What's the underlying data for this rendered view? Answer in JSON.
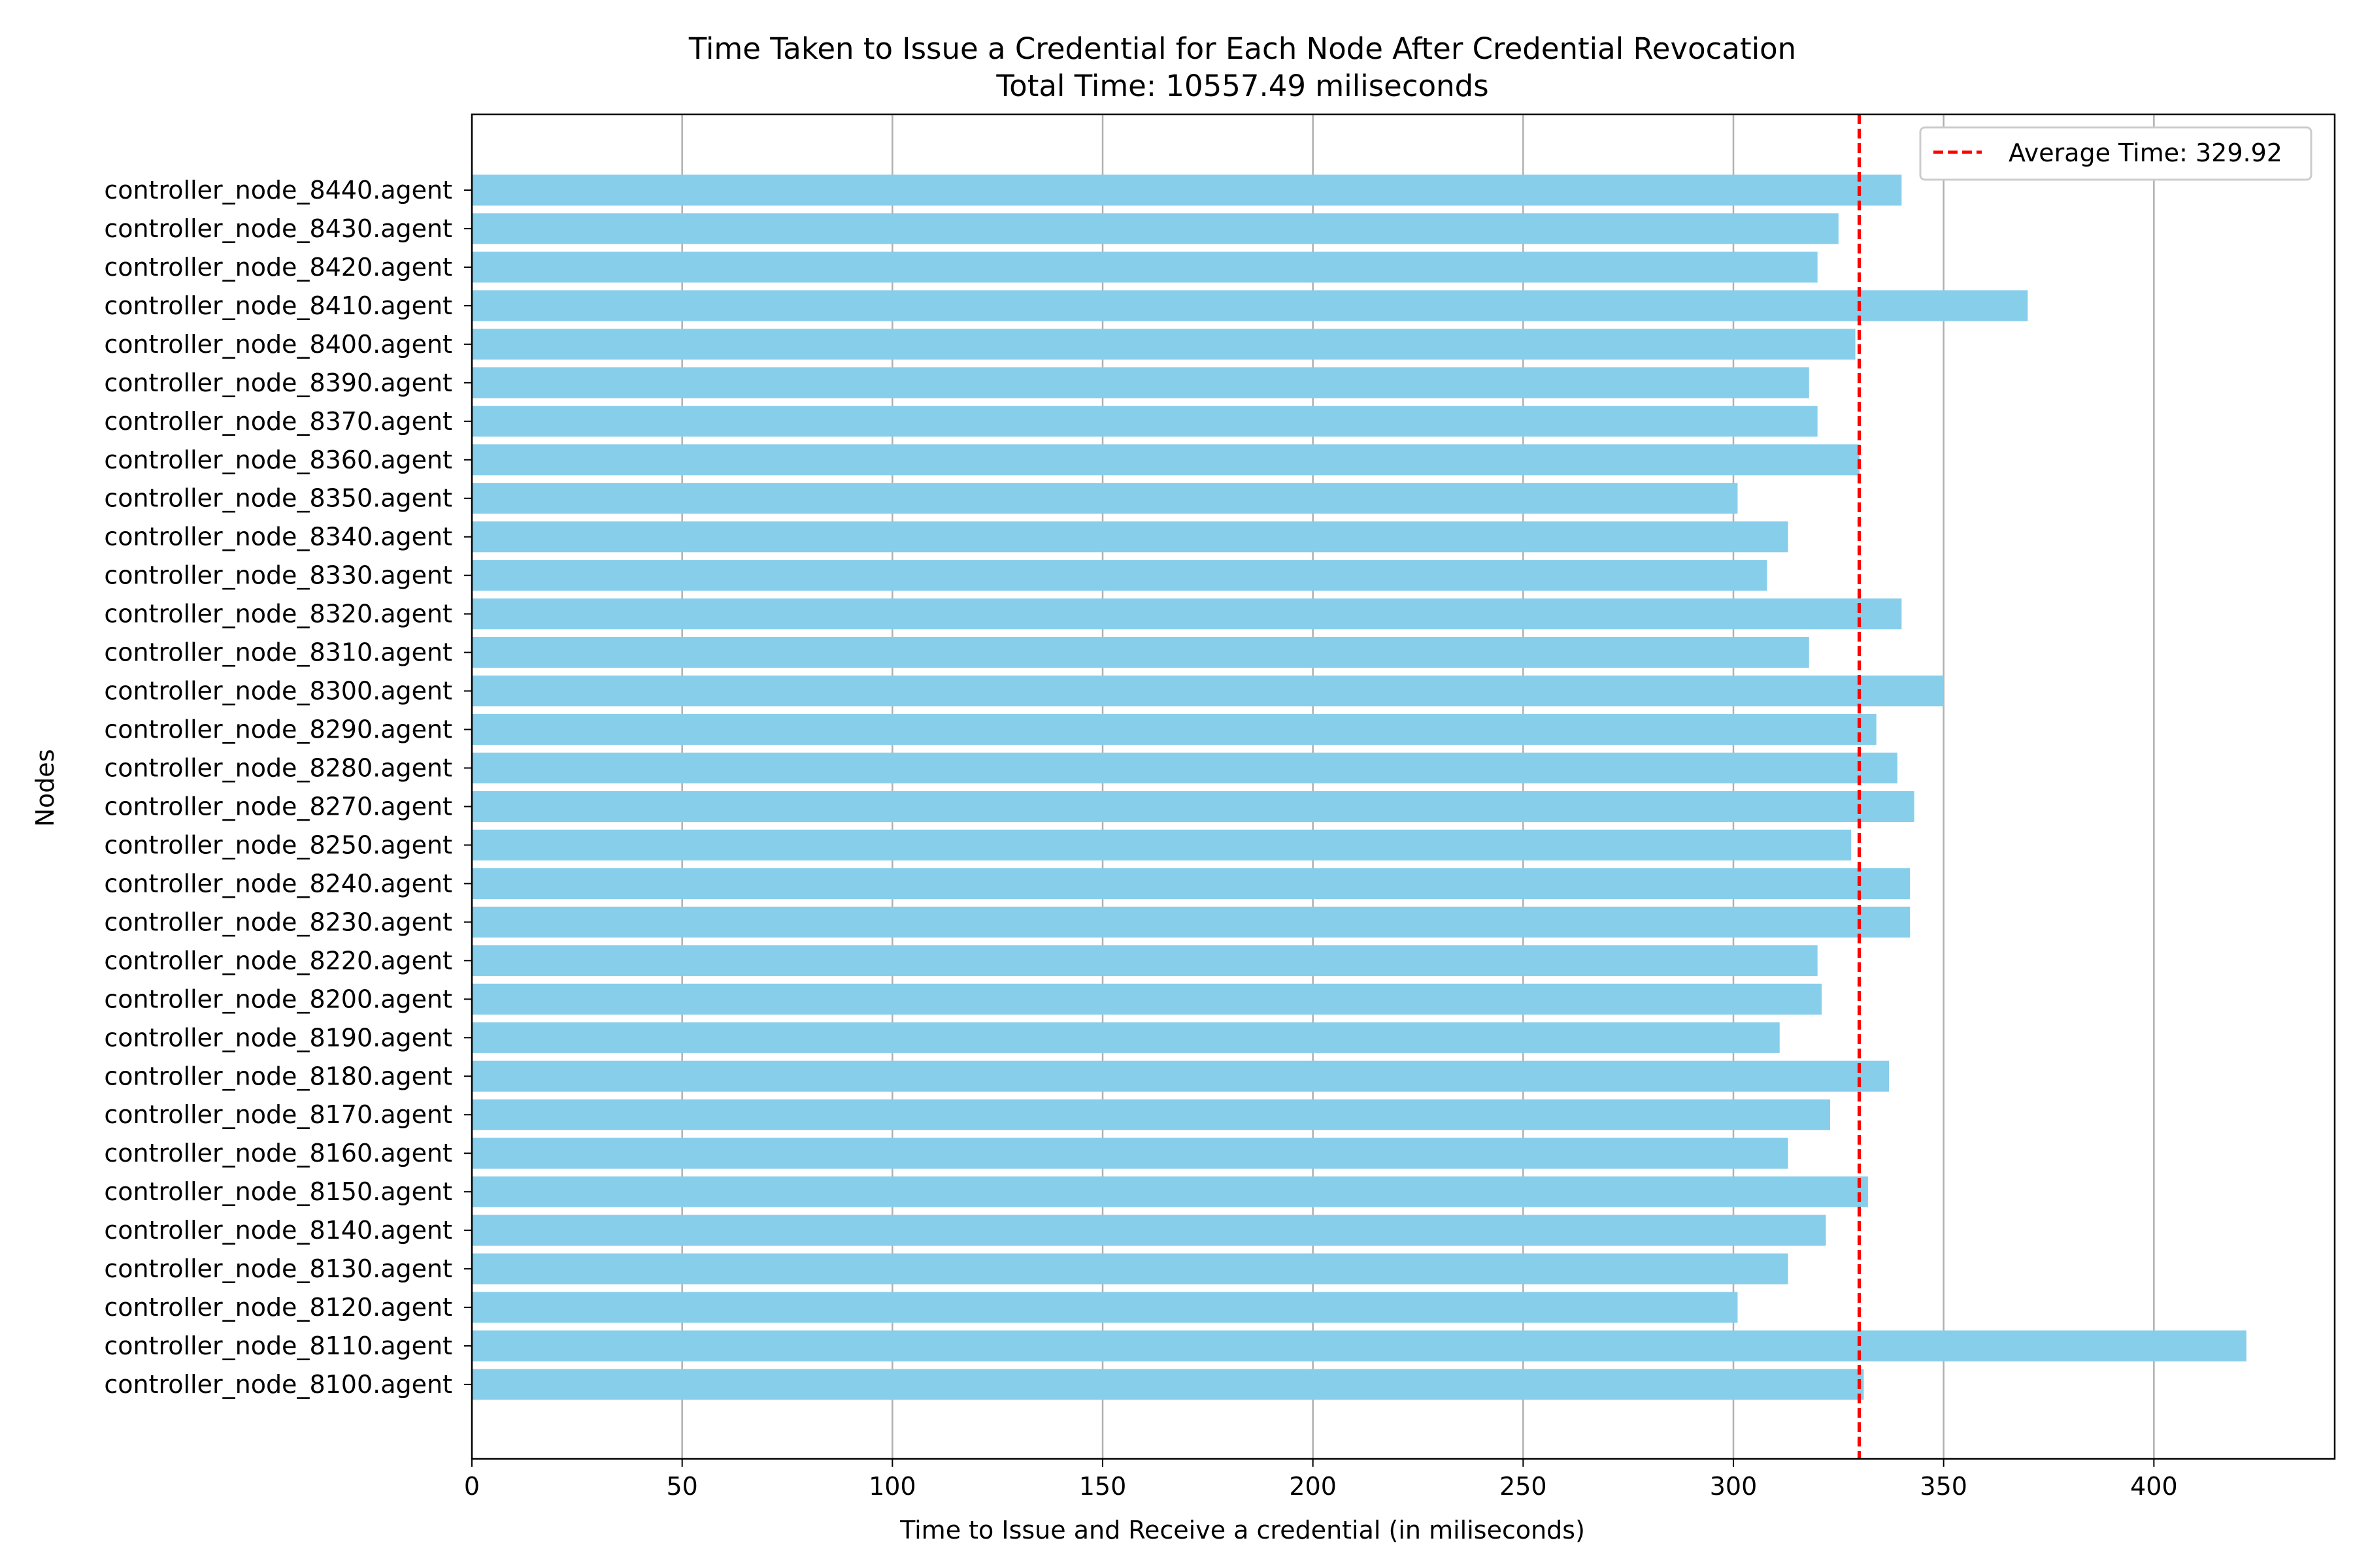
{
  "chart_data": {
    "type": "bar",
    "orientation": "horizontal",
    "title": "Time Taken to Issue a Credential for Each Node After Credential Revocation",
    "subtitle": "Total Time: 10557.49 miliseconds",
    "xlabel": "Time to Issue and Receive a credential (in miliseconds)",
    "ylabel": "Nodes",
    "xlim": [
      0,
      443
    ],
    "xticks": [
      "0",
      "50",
      "100",
      "150",
      "200",
      "250",
      "300",
      "350",
      "400"
    ],
    "grid": "vertical",
    "legend_position": "top-right",
    "bar_color": "#87ceeb",
    "average": {
      "label": "Average Time: 329.92",
      "value": 329.92,
      "color": "#ff0000"
    },
    "categories": [
      "controller_node_8100.agent",
      "controller_node_8110.agent",
      "controller_node_8120.agent",
      "controller_node_8130.agent",
      "controller_node_8140.agent",
      "controller_node_8150.agent",
      "controller_node_8160.agent",
      "controller_node_8170.agent",
      "controller_node_8180.agent",
      "controller_node_8190.agent",
      "controller_node_8200.agent",
      "controller_node_8220.agent",
      "controller_node_8230.agent",
      "controller_node_8240.agent",
      "controller_node_8250.agent",
      "controller_node_8270.agent",
      "controller_node_8280.agent",
      "controller_node_8290.agent",
      "controller_node_8300.agent",
      "controller_node_8310.agent",
      "controller_node_8320.agent",
      "controller_node_8330.agent",
      "controller_node_8340.agent",
      "controller_node_8350.agent",
      "controller_node_8360.agent",
      "controller_node_8370.agent",
      "controller_node_8390.agent",
      "controller_node_8400.agent",
      "controller_node_8410.agent",
      "controller_node_8420.agent",
      "controller_node_8430.agent",
      "controller_node_8440.agent"
    ],
    "values": [
      331,
      422,
      301,
      313,
      322,
      332,
      313,
      323,
      337,
      311,
      321,
      320,
      342,
      342,
      328,
      343,
      339,
      334,
      350,
      318,
      340,
      308,
      313,
      301,
      330,
      320,
      318,
      329,
      370,
      320,
      325,
      340
    ]
  }
}
